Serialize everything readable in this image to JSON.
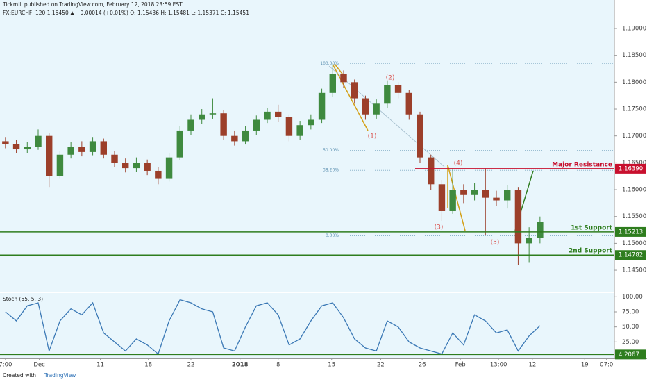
{
  "chart_data": {
    "type": "candlestick",
    "header": "Tickmill published on TradingView.com, February 12, 2018 23:59 EST",
    "info": "FX:EURCHF, 120  1.15450 ▲ +0.00014 (+0.01%)  O: 1.15436  H: 1.15481  L: 1.15371  C: 1.15451",
    "ylim": [
      1.141,
      1.1953
    ],
    "yticks": [
      {
        "value": 1.19,
        "label": "1.19000"
      },
      {
        "value": 1.185,
        "label": "1.18500"
      },
      {
        "value": 1.18,
        "label": "1.18000"
      },
      {
        "value": 1.175,
        "label": "1.17500"
      },
      {
        "value": 1.17,
        "label": "1.17000"
      },
      {
        "value": 1.165,
        "label": "1.16500"
      },
      {
        "value": 1.16,
        "label": "1.16000"
      },
      {
        "value": 1.155,
        "label": "1.15500"
      },
      {
        "value": 1.15,
        "label": "1.15000"
      },
      {
        "value": 1.145,
        "label": "1.14500"
      }
    ],
    "xlim": [
      0,
      56
    ],
    "xticks": [
      {
        "value": 0.5,
        "label": "7:00"
      },
      {
        "value": 3.6,
        "label": "Dec"
      },
      {
        "value": 9.2,
        "label": "11"
      },
      {
        "value": 13.6,
        "label": "18"
      },
      {
        "value": 17.5,
        "label": "22"
      },
      {
        "value": 22,
        "label": "2018"
      },
      {
        "value": 25.5,
        "label": "8"
      },
      {
        "value": 30.4,
        "label": "15"
      },
      {
        "value": 34.9,
        "label": "22"
      },
      {
        "value": 38.7,
        "label": "26"
      },
      {
        "value": 42.2,
        "label": "Feb"
      },
      {
        "value": 45.7,
        "label": "13:00"
      },
      {
        "value": 48.8,
        "label": "12"
      },
      {
        "value": 53.6,
        "label": "19"
      },
      {
        "value": 55.6,
        "label": "07:0"
      }
    ],
    "open": [
      1.169,
      1.1685,
      1.1675,
      1.168,
      1.17,
      1.1625,
      1.1665,
      1.168,
      1.167,
      1.169,
      1.1665,
      1.165,
      1.164,
      1.165,
      1.1635,
      1.162,
      1.166,
      1.171,
      1.173,
      1.174,
      1.1742,
      1.17,
      1.169,
      1.171,
      1.173,
      1.1745,
      1.1735,
      1.17,
      1.172,
      1.173,
      1.178,
      1.1815,
      1.18,
      1.177,
      1.174,
      1.176,
      1.1795,
      1.178,
      1.174,
      1.166,
      1.161,
      1.156,
      1.16,
      1.159,
      1.16,
      1.1585,
      1.158,
      1.16,
      1.15,
      1.151
    ],
    "high": [
      1.1698,
      1.1692,
      1.1688,
      1.1712,
      1.1705,
      1.1672,
      1.1688,
      1.169,
      1.1698,
      1.1695,
      1.1672,
      1.1658,
      1.166,
      1.1656,
      1.1642,
      1.1668,
      1.1718,
      1.174,
      1.175,
      1.177,
      1.1748,
      1.171,
      1.1718,
      1.1738,
      1.1752,
      1.1758,
      1.174,
      1.1728,
      1.174,
      1.1788,
      1.1835,
      1.1822,
      1.1805,
      1.1775,
      1.1768,
      1.1802,
      1.18,
      1.1785,
      1.1745,
      1.1665,
      1.1618,
      1.164,
      1.161,
      1.1612,
      1.164,
      1.1598,
      1.1608,
      1.1605,
      1.153,
      1.155
    ],
    "low": [
      1.1677,
      1.1668,
      1.1668,
      1.1674,
      1.1605,
      1.162,
      1.1658,
      1.1662,
      1.1664,
      1.1658,
      1.1642,
      1.1632,
      1.1633,
      1.1627,
      1.161,
      1.1615,
      1.1655,
      1.1702,
      1.1722,
      1.1732,
      1.1692,
      1.1682,
      1.1684,
      1.1702,
      1.1724,
      1.1726,
      1.169,
      1.1692,
      1.1712,
      1.1724,
      1.1772,
      1.179,
      1.176,
      1.173,
      1.1732,
      1.1752,
      1.177,
      1.173,
      1.165,
      1.16,
      1.1542,
      1.1555,
      1.1575,
      1.158,
      1.1515,
      1.157,
      1.1565,
      1.146,
      1.1465,
      1.15
    ],
    "close": [
      1.1685,
      1.1675,
      1.168,
      1.17,
      1.1625,
      1.1665,
      1.168,
      1.167,
      1.169,
      1.1665,
      1.165,
      1.164,
      1.165,
      1.1635,
      1.162,
      1.166,
      1.171,
      1.173,
      1.174,
      1.1742,
      1.17,
      1.169,
      1.171,
      1.173,
      1.1745,
      1.1735,
      1.17,
      1.172,
      1.173,
      1.178,
      1.1815,
      1.18,
      1.177,
      1.174,
      1.176,
      1.1795,
      1.178,
      1.174,
      1.166,
      1.161,
      1.156,
      1.16,
      1.159,
      1.16,
      1.1585,
      1.158,
      1.16,
      1.15,
      1.151,
      1.154
    ],
    "up_color": "#3f8a3f",
    "down_color": "#9c3f2a",
    "levels": [
      {
        "name": "Major Resistance",
        "value": 1.1639,
        "label": "1.16390",
        "color": "#c8102e"
      },
      {
        "name": "1st Support",
        "value": 1.15213,
        "label": "1.15213",
        "color": "#2e7d1e"
      },
      {
        "name": "2nd Support",
        "value": 1.14782,
        "label": "1.14782",
        "color": "#2e7d1e"
      }
    ],
    "fib": [
      {
        "value": 1.1835,
        "label": "100.00%"
      },
      {
        "value": 1.1673,
        "label": "50.00%"
      },
      {
        "value": 1.1636,
        "label": "38.20%"
      },
      {
        "value": 1.1514,
        "label": "0.00%"
      }
    ],
    "waves": [
      "(1)",
      "(2)",
      "(3)",
      "(4)",
      "(5)"
    ],
    "stoch": {
      "title": "Stoch (55, 5, 3)",
      "color": "#3a78b5",
      "ylim": [
        0,
        105
      ],
      "yticks": [
        {
          "value": 100,
          "label": "100.00"
        },
        {
          "value": 75,
          "label": "75.00"
        },
        {
          "value": 50,
          "label": "50.00"
        },
        {
          "value": 25,
          "label": "25.00"
        }
      ],
      "values": [
        75,
        60,
        85,
        90,
        10,
        60,
        80,
        70,
        90,
        40,
        25,
        10,
        30,
        20,
        5,
        60,
        95,
        90,
        80,
        75,
        15,
        10,
        50,
        85,
        90,
        70,
        20,
        30,
        60,
        85,
        90,
        65,
        30,
        15,
        10,
        60,
        50,
        25,
        15,
        10,
        5,
        40,
        20,
        70,
        60,
        40,
        45,
        10,
        35,
        52
      ],
      "level": {
        "value": 4.2067,
        "label": "4.2067",
        "color": "#2e7d1e"
      }
    },
    "footer": {
      "created": "Created with",
      "brand": "TradingView"
    }
  }
}
